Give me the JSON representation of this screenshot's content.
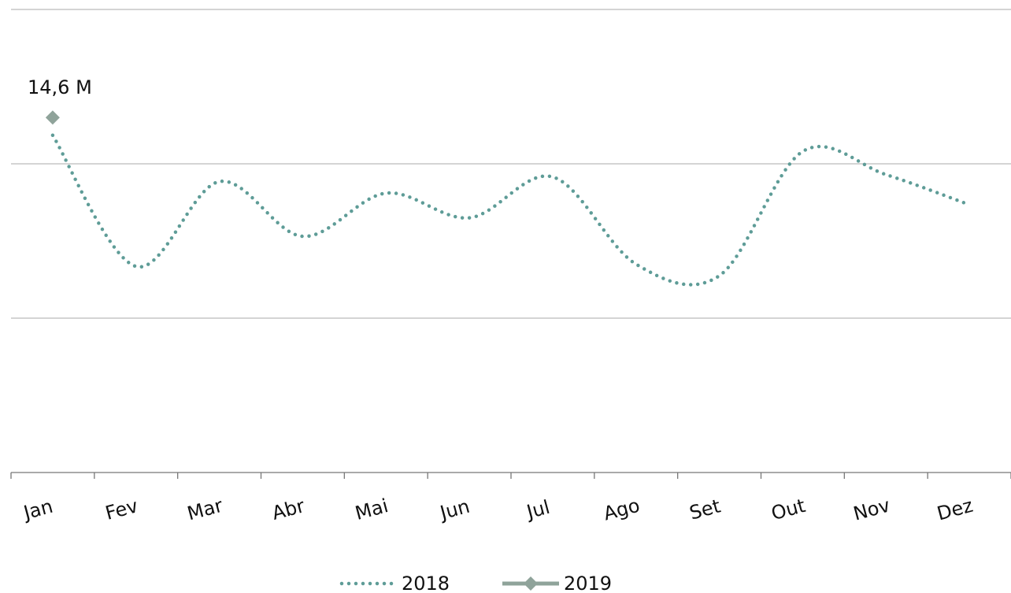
{
  "chart_data": {
    "type": "line",
    "categories": [
      "Jan",
      "Fev",
      "Mar",
      "Abr",
      "Mai",
      "Jun",
      "Jul",
      "Ago",
      "Set",
      "Out",
      "Nov",
      "Dez"
    ],
    "series": [
      {
        "name": "2018",
        "color": "#5e9c97",
        "style": "dotted",
        "smooth": true,
        "values": [
          14.37,
          12.67,
          13.77,
          13.06,
          13.62,
          13.3,
          13.83,
          12.7,
          12.55,
          14.16,
          13.86,
          13.47
        ]
      },
      {
        "name": "2019",
        "color": "#8fa39a",
        "style": "solid",
        "marker": "diamond",
        "values": [
          14.6,
          null,
          null,
          null,
          null,
          null,
          null,
          null,
          null,
          null,
          null,
          null
        ],
        "value_labels": [
          "14,6 M",
          null,
          null,
          null,
          null,
          null,
          null,
          null,
          null,
          null,
          null,
          null
        ]
      }
    ],
    "ylim": [
      10,
      16
    ],
    "yticks": [
      10,
      12,
      14,
      16
    ],
    "grid": true,
    "legend": "bottom"
  }
}
